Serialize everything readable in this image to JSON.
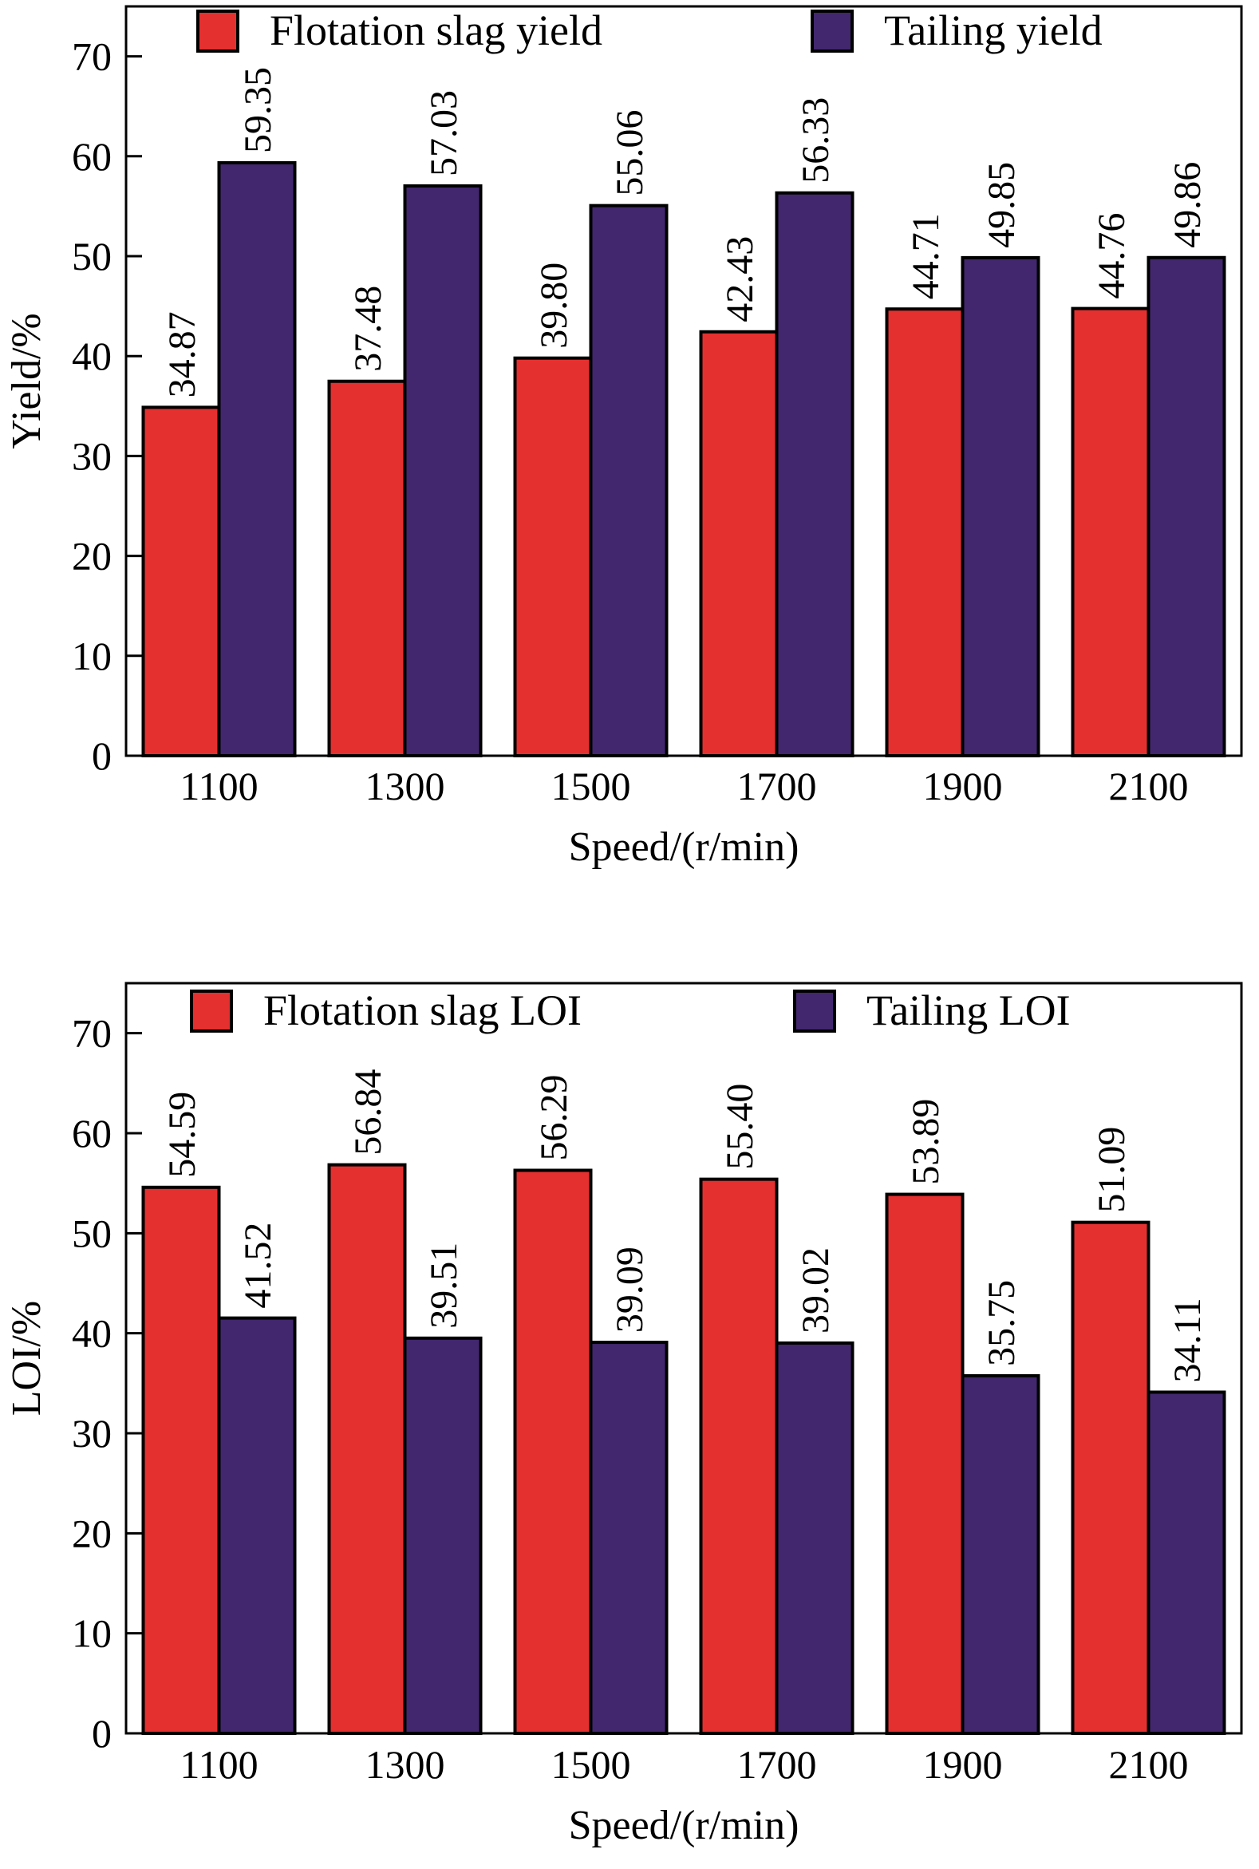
{
  "chart_data": [
    {
      "type": "bar",
      "categories": [
        "1100",
        "1300",
        "1500",
        "1700",
        "1900",
        "2100"
      ],
      "xlabel": "Speed/(r/min)",
      "ylabel": "Yield/%",
      "ylim": [
        0,
        75
      ],
      "yticks": [
        0,
        10,
        20,
        30,
        40,
        50,
        60,
        70
      ],
      "legend_position": "top",
      "grid": false,
      "series": [
        {
          "name": "Flotation slag yield",
          "color": "#e53030",
          "values": [
            34.87,
            37.48,
            39.8,
            42.43,
            44.71,
            44.76
          ],
          "labels": [
            "34.87",
            "37.48",
            "39.80",
            "42.43",
            "44.71",
            "44.76"
          ]
        },
        {
          "name": "Tailing yield",
          "color": "#42276e",
          "values": [
            59.35,
            57.03,
            55.06,
            56.33,
            49.85,
            49.86
          ],
          "labels": [
            "59.35",
            "57.03",
            "55.06",
            "56.33",
            "49.85",
            "49.86"
          ]
        }
      ]
    },
    {
      "type": "bar",
      "categories": [
        "1100",
        "1300",
        "1500",
        "1700",
        "1900",
        "2100"
      ],
      "xlabel": "Speed/(r/min)",
      "ylabel": "LOI/%",
      "ylim": [
        0,
        75
      ],
      "yticks": [
        0,
        10,
        20,
        30,
        40,
        50,
        60,
        70
      ],
      "legend_position": "top",
      "grid": false,
      "series": [
        {
          "name": "Flotation slag LOI",
          "color": "#e53030",
          "values": [
            54.59,
            56.84,
            56.29,
            55.4,
            53.89,
            51.09
          ],
          "labels": [
            "54.59",
            "56.84",
            "56.29",
            "55.40",
            "53.89",
            "51.09"
          ]
        },
        {
          "name": "Tailing LOI",
          "color": "#42276e",
          "values": [
            41.52,
            39.51,
            39.09,
            39.02,
            35.75,
            34.11
          ],
          "labels": [
            "41.52",
            "39.51",
            "39.09",
            "39.02",
            "35.75",
            "34.11"
          ]
        }
      ]
    }
  ]
}
